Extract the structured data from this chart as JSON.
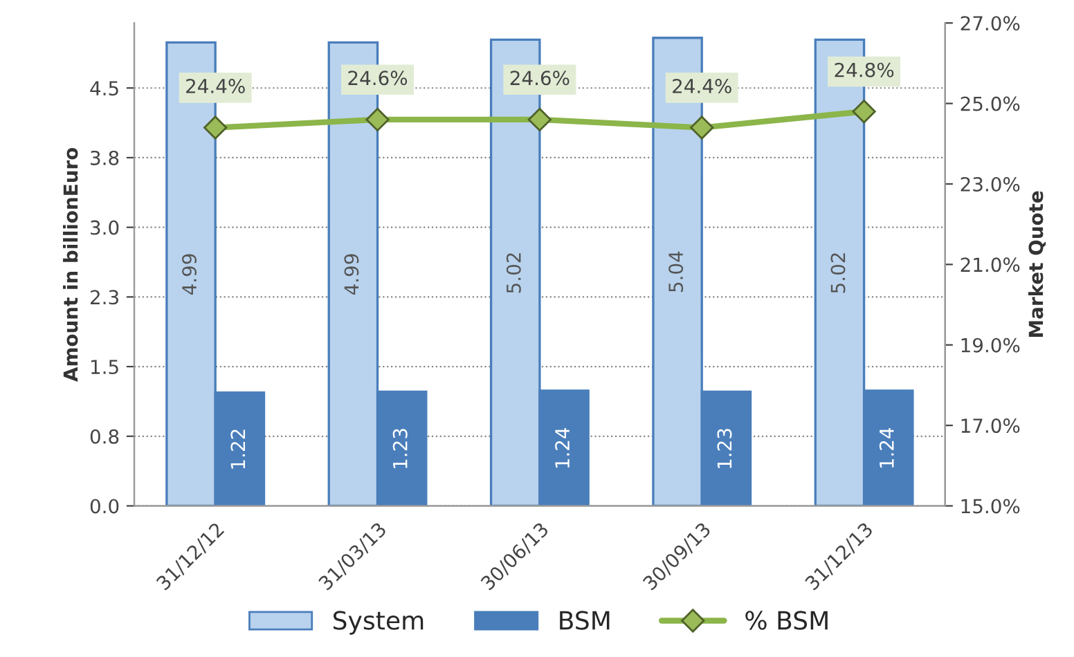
{
  "chart_data": {
    "type": "bar",
    "ylabel": "Amount in billionEuro",
    "y2label": "Market Quote",
    "categories": [
      "31/12/12",
      "31/03/13",
      "30/06/13",
      "30/09/13",
      "31/12/13"
    ],
    "series": [
      {
        "name": "System",
        "color": "#b9d3ee",
        "values": [
          4.99,
          4.99,
          5.02,
          5.04,
          5.02
        ],
        "value_labels": [
          "4.99",
          "4.99",
          "5.02",
          "5.04",
          "5.02"
        ]
      },
      {
        "name": "BSM",
        "color": "#4a7ebb",
        "values": [
          1.22,
          1.23,
          1.24,
          1.23,
          1.24
        ],
        "value_labels": [
          "1.22",
          "1.23",
          "1.24",
          "1.23",
          "1.24"
        ]
      },
      {
        "name": "% BSM",
        "type": "line",
        "axis": "y2",
        "color": "#8cb54a",
        "marker": "diamond",
        "values": [
          24.4,
          24.6,
          24.6,
          24.4,
          24.8
        ],
        "value_labels": [
          "24.4%",
          "24.6%",
          "24.6%",
          "24.4%",
          "24.8%"
        ]
      }
    ],
    "ylim": [
      0,
      5.2
    ],
    "yticks": [
      {
        "value": 0,
        "label": "0.0"
      },
      {
        "value": 0.75,
        "label": "0.8"
      },
      {
        "value": 1.5,
        "label": "1.5"
      },
      {
        "value": 2.25,
        "label": "2.3"
      },
      {
        "value": 3.0,
        "label": "3.0"
      },
      {
        "value": 3.75,
        "label": "3.8"
      },
      {
        "value": 4.5,
        "label": "4.5"
      }
    ],
    "y2lim": [
      15,
      27
    ],
    "y2ticks": [
      {
        "value": 15,
        "label": "15.0%"
      },
      {
        "value": 17,
        "label": "17.0%"
      },
      {
        "value": 19,
        "label": "19.0%"
      },
      {
        "value": 21,
        "label": "21.0%"
      },
      {
        "value": 23,
        "label": "23.0%"
      },
      {
        "value": 25,
        "label": "25.0%"
      },
      {
        "value": 27,
        "label": "27.0%"
      }
    ],
    "grid": "y",
    "legend": "bottom"
  }
}
